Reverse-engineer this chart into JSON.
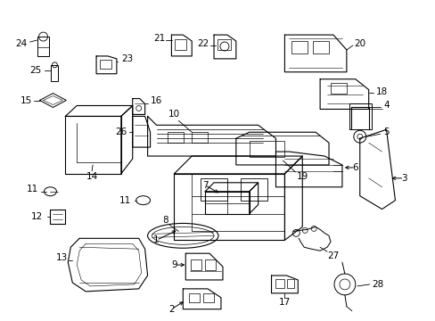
{
  "background_color": "#ffffff",
  "figsize": [
    4.89,
    3.6
  ],
  "dpi": 100,
  "label_fontsize": 7.5,
  "line_color": "#000000",
  "line_width": 0.8
}
